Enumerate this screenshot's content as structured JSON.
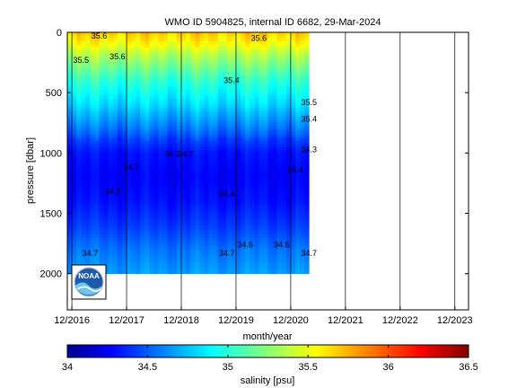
{
  "chart_data": [
    {
      "type": "heatmap",
      "title": "WMO ID 5904825, internal ID 6682, 29-Mar-2024",
      "xlabel": "month/year",
      "ylabel": "pressure [dbar]",
      "x_ticks": [
        "12/2016",
        "12/2017",
        "12/2018",
        "12/2019",
        "12/2020",
        "12/2021",
        "12/2022",
        "12/2023"
      ],
      "y_ticks": [
        0,
        500,
        1000,
        1500,
        2000
      ],
      "xlim": [
        "2016-11",
        "2024-03"
      ],
      "ylim": [
        2300,
        0
      ],
      "y_reversed": true,
      "grid": "vertical lines at x ticks",
      "colormap": "jet",
      "color_range": [
        34,
        36.5
      ],
      "profiles_end": "2021-04",
      "data_max_pressure": 2000,
      "salinity_by_pressure": {
        "pressure": [
          0,
          100,
          200,
          300,
          400,
          500,
          600,
          700,
          800,
          900,
          1000,
          1200,
          1400,
          1600,
          1800,
          2000
        ],
        "salinity": [
          35.7,
          35.55,
          35.35,
          35.2,
          35.05,
          34.95,
          34.85,
          34.72,
          34.6,
          34.45,
          34.35,
          34.3,
          34.35,
          34.45,
          34.6,
          34.7
        ]
      },
      "contour_labels": [
        {
          "text": "35.5",
          "x": "2021-04",
          "pressure": 580
        },
        {
          "text": "35.4",
          "x": "2021-04",
          "pressure": 720
        },
        {
          "text": "34.3",
          "x": "2021-04",
          "pressure": 970
        },
        {
          "text": "34.7",
          "x": "2021-04",
          "pressure": 1830
        },
        {
          "text": "34.7",
          "x": "2017-04",
          "pressure": 1830
        },
        {
          "text": "34.7",
          "x": "2019-10",
          "pressure": 1830
        },
        {
          "text": "34.7",
          "x": "2018-01",
          "pressure": 1120
        },
        {
          "text": "34.7",
          "x": "2018-10",
          "pressure": 1010
        },
        {
          "text": "34.7",
          "x": "2019-01",
          "pressure": 1010
        },
        {
          "text": "34.6",
          "x": "2020-02",
          "pressure": 1760
        },
        {
          "text": "34.6",
          "x": "2020-10",
          "pressure": 1760
        },
        {
          "text": "34.5",
          "x": "2017-09",
          "pressure": 1320
        },
        {
          "text": "34.4",
          "x": "2021-01",
          "pressure": 1140
        },
        {
          "text": "34.4",
          "x": "2019-10",
          "pressure": 1340
        },
        {
          "text": "35.6",
          "x": "2017-10",
          "pressure": 200
        },
        {
          "text": "35.6",
          "x": "2017-06",
          "pressure": 30
        },
        {
          "text": "35.6",
          "x": "2020-05",
          "pressure": 50
        },
        {
          "text": "35.5",
          "x": "2017-02",
          "pressure": 230
        },
        {
          "text": "35.4",
          "x": "2019-11",
          "pressure": 400
        }
      ]
    },
    {
      "type": "colorbar",
      "label": "salinity [psu]",
      "ticks": [
        "34",
        "34.5",
        "35",
        "35.5",
        "36",
        "36.5"
      ],
      "range": [
        34,
        36.5
      ]
    }
  ],
  "logo_text": "NOAA"
}
